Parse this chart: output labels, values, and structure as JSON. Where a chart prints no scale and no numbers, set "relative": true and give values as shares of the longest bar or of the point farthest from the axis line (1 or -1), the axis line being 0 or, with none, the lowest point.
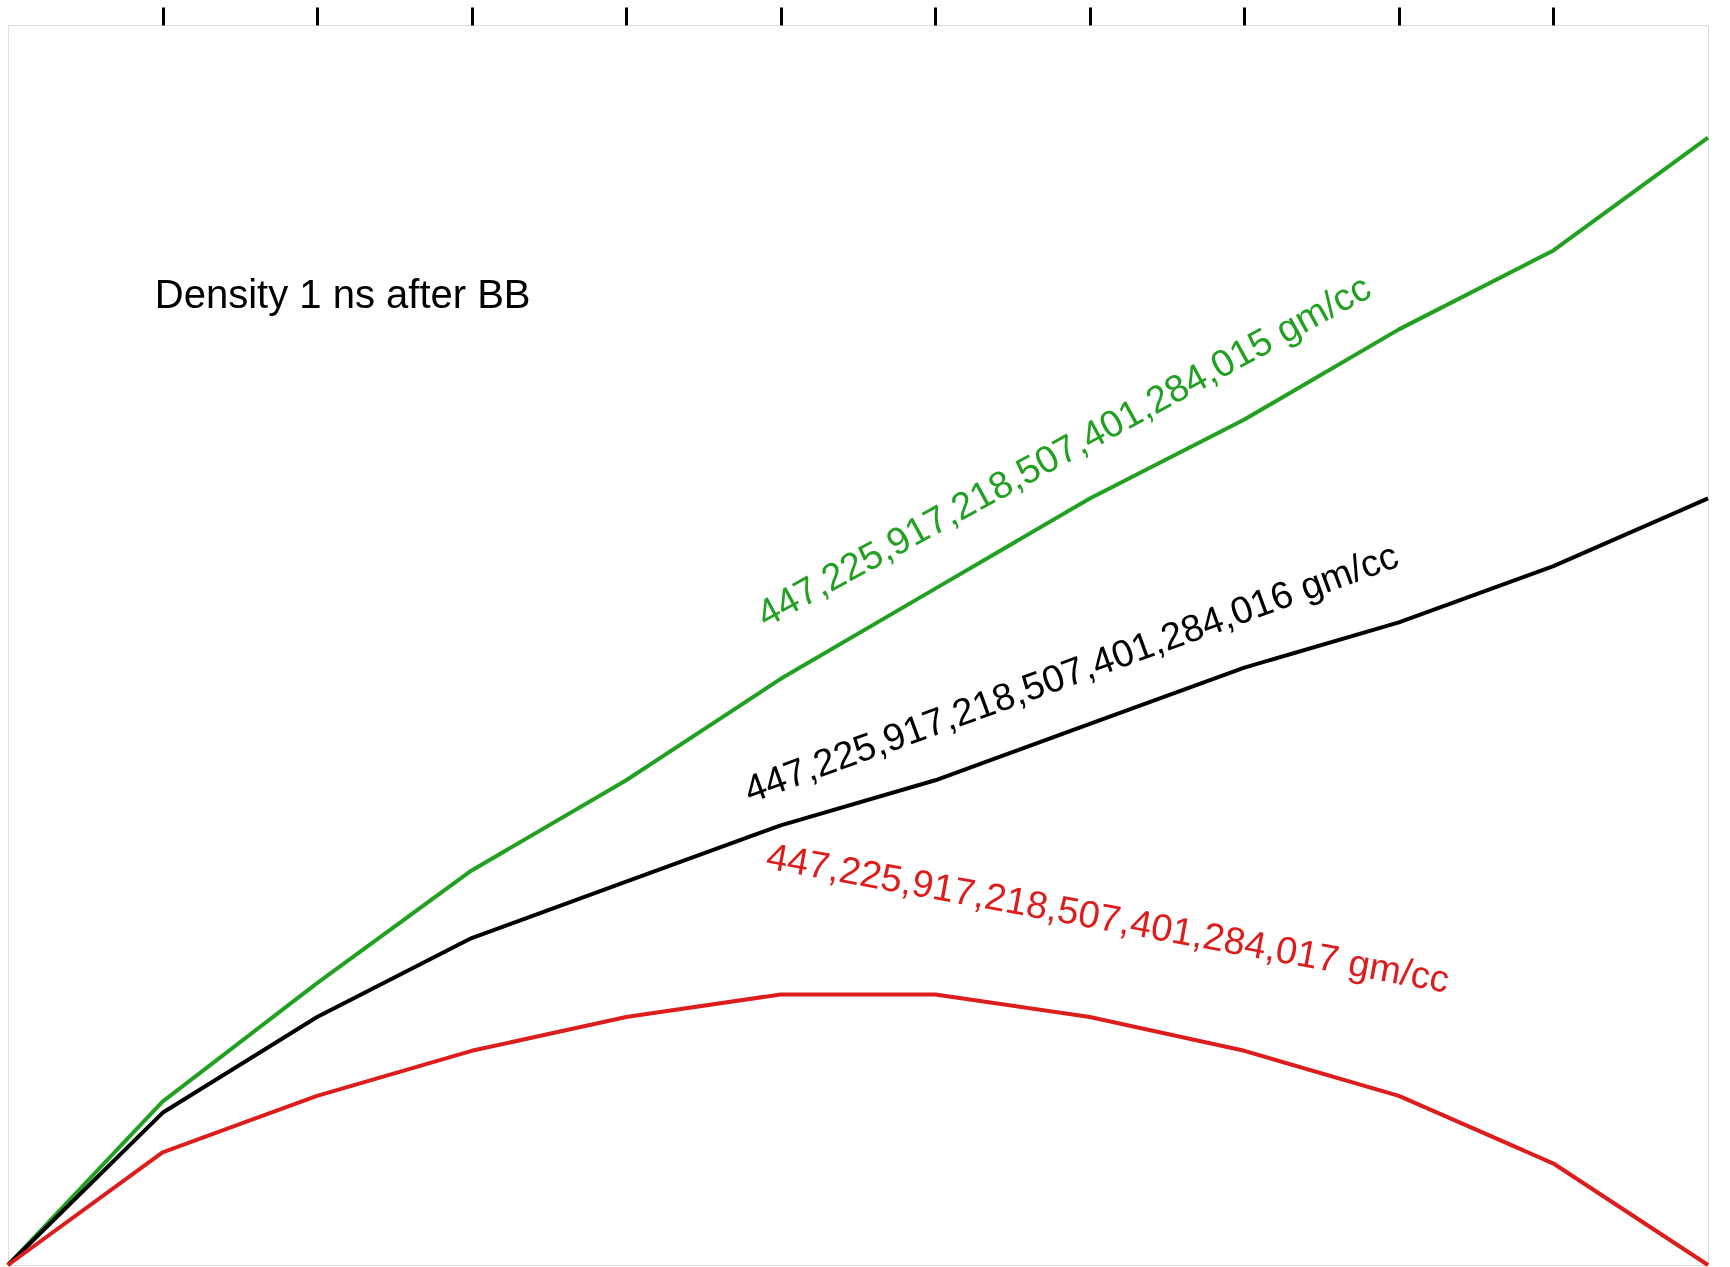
{
  "chart_data": {
    "type": "line",
    "title": "Density 1 ns after BB",
    "relative": true,
    "categories": [
      null,
      null,
      null,
      null,
      null,
      null,
      null,
      null,
      null,
      null,
      null,
      null
    ],
    "series": [
      {
        "name": "447,225,917,218,507,401,284,015 gm/cc",
        "color": "#22a022",
        "values": [
          0,
          0.145,
          0.25,
          0.35,
          0.43,
          0.52,
          0.6,
          0.68,
          0.75,
          0.83,
          0.9,
          1
        ]
      },
      {
        "name": "447,225,917,218,507,401,284,016 gm/cc",
        "color": "#000000",
        "values": [
          0,
          0.135,
          0.22,
          0.29,
          0.34,
          0.39,
          0.43,
          0.48,
          0.53,
          0.57,
          0.62,
          0.68
        ]
      },
      {
        "name": "447,225,917,218,507,401,284,017 gm/cc",
        "color": "#dd1c1c",
        "values": [
          0,
          0.1,
          0.15,
          0.19,
          0.22,
          0.24,
          0.24,
          0.22,
          0.19,
          0.15,
          0.09,
          0
        ]
      }
    ]
  }
}
